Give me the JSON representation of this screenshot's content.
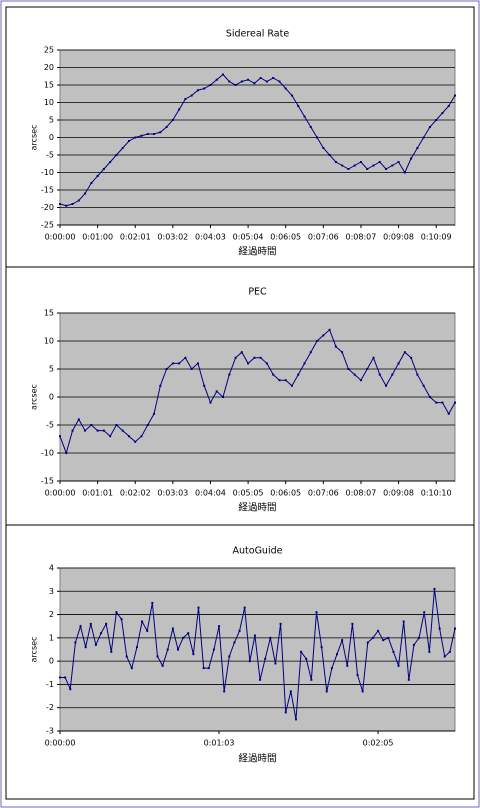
{
  "chart_data": [
    {
      "type": "line",
      "title": "Sidereal Rate",
      "x_label": "経過時間",
      "y_label": "arcsec",
      "color": "#000080",
      "grid": true,
      "ylim": [
        -25,
        25
      ],
      "yticks": [
        -25,
        -20,
        -15,
        -10,
        -5,
        0,
        5,
        10,
        15,
        20,
        25
      ],
      "categories": [
        "0:00:00",
        null,
        null,
        null,
        null,
        null,
        "0:01:00",
        null,
        null,
        null,
        null,
        null,
        "0:02:01",
        null,
        null,
        null,
        null,
        null,
        "0:03:02",
        null,
        null,
        null,
        null,
        null,
        "0:04:03",
        null,
        null,
        null,
        null,
        null,
        "0:05:04",
        null,
        null,
        null,
        null,
        null,
        "0:06:05",
        null,
        null,
        null,
        null,
        null,
        "0:07:06",
        null,
        null,
        null,
        null,
        null,
        "0:08:07",
        null,
        null,
        null,
        null,
        null,
        "0:09:08",
        null,
        null,
        null,
        null,
        null,
        "0:10:09",
        null,
        null,
        null
      ],
      "values": [
        -19,
        -19.5,
        -19,
        -18,
        -16,
        -13,
        -11,
        -9,
        -7,
        -5,
        -3,
        -1,
        0,
        0.5,
        1,
        1,
        1.5,
        3,
        5,
        8,
        11,
        12,
        13.5,
        14,
        15,
        16.5,
        18,
        16,
        15,
        16,
        16.5,
        15.5,
        17,
        16,
        17,
        16,
        14,
        12,
        9,
        6,
        3,
        0,
        -3,
        -5,
        -7,
        -8,
        -9,
        -8,
        -7,
        -9,
        -8,
        -7,
        -9,
        -8,
        -7,
        -10,
        -6,
        -3,
        0,
        3,
        5,
        7,
        9,
        12
      ]
    },
    {
      "type": "line",
      "title": "PEC",
      "x_label": "経過時間",
      "y_label": "arcsec",
      "color": "#000080",
      "grid": true,
      "ylim": [
        -15,
        15
      ],
      "yticks": [
        -15,
        -10,
        -5,
        0,
        5,
        10,
        15
      ],
      "categories": [
        "0:00:00",
        null,
        null,
        null,
        null,
        null,
        "0:01:01",
        null,
        null,
        null,
        null,
        null,
        "0:02:02",
        null,
        null,
        null,
        null,
        null,
        "0:03:03",
        null,
        null,
        null,
        null,
        null,
        "0:04:04",
        null,
        null,
        null,
        null,
        null,
        "0:05:05",
        null,
        null,
        null,
        null,
        null,
        "0:06:05",
        null,
        null,
        null,
        null,
        null,
        "0:07:06",
        null,
        null,
        null,
        null,
        null,
        "0:08:07",
        null,
        null,
        null,
        null,
        null,
        "0:09:08",
        null,
        null,
        null,
        null,
        null,
        "0:10:10",
        null,
        null,
        null
      ],
      "values": [
        -7,
        -10,
        -6,
        -4,
        -6,
        -5,
        -6,
        -6,
        -7,
        -5,
        -6,
        -7,
        -8,
        -7,
        -5,
        -3,
        2,
        5,
        6,
        6,
        7,
        5,
        6,
        2,
        -1,
        1,
        0,
        4,
        7,
        8,
        6,
        7,
        7,
        6,
        4,
        3,
        3,
        2,
        4,
        6,
        8,
        10,
        11,
        12,
        9,
        8,
        5,
        4,
        3,
        5,
        7,
        4,
        2,
        4,
        6,
        8,
        7,
        4,
        2,
        0,
        -1,
        -1,
        -3,
        -1
      ]
    },
    {
      "type": "line",
      "title": "AutoGuide",
      "x_label": "経過時間",
      "y_label": "arcsec",
      "color": "#000080",
      "grid": true,
      "ylim": [
        -3,
        4
      ],
      "yticks": [
        -3,
        -2,
        -1,
        0,
        1,
        2,
        3,
        4
      ],
      "categories": [
        "0:00:00",
        null,
        null,
        null,
        null,
        null,
        null,
        null,
        null,
        null,
        null,
        null,
        null,
        null,
        null,
        null,
        null,
        null,
        null,
        null,
        null,
        null,
        null,
        null,
        null,
        null,
        null,
        null,
        null,
        null,
        null,
        "0:01:03",
        null,
        null,
        null,
        null,
        null,
        null,
        null,
        null,
        null,
        null,
        null,
        null,
        null,
        null,
        null,
        null,
        null,
        null,
        null,
        null,
        null,
        null,
        null,
        null,
        null,
        null,
        null,
        null,
        null,
        null,
        "0:02:05",
        null,
        null,
        null,
        null,
        null,
        null,
        null,
        null,
        null,
        null,
        null,
        null,
        null,
        null,
        null
      ],
      "values": [
        -0.7,
        -0.7,
        -1.2,
        0.8,
        1.5,
        0.6,
        1.6,
        0.7,
        1.2,
        1.6,
        0.4,
        2.1,
        1.8,
        0.2,
        -0.3,
        0.6,
        1.7,
        1.3,
        2.5,
        0.2,
        -0.2,
        0.5,
        1.4,
        0.5,
        1.0,
        1.2,
        0.3,
        2.3,
        -0.3,
        -0.3,
        0.5,
        1.5,
        -1.3,
        0.2,
        0.8,
        1.3,
        2.3,
        0,
        1.1,
        -0.8,
        0.1,
        1.0,
        -0.1,
        1.6,
        -2.2,
        -1.3,
        -2.5,
        0.4,
        0.1,
        -0.8,
        2.1,
        0.6,
        -1.3,
        -0.3,
        0.3,
        0.9,
        -0.2,
        1.6,
        -0.6,
        -1.3,
        0.8,
        1.0,
        1.3,
        0.9,
        1.0,
        0.4,
        -0.2,
        1.7,
        -0.8,
        0.7,
        1.0,
        2.1,
        0.4,
        3.1,
        1.4,
        0.2,
        0.4,
        1.4
      ]
    }
  ]
}
